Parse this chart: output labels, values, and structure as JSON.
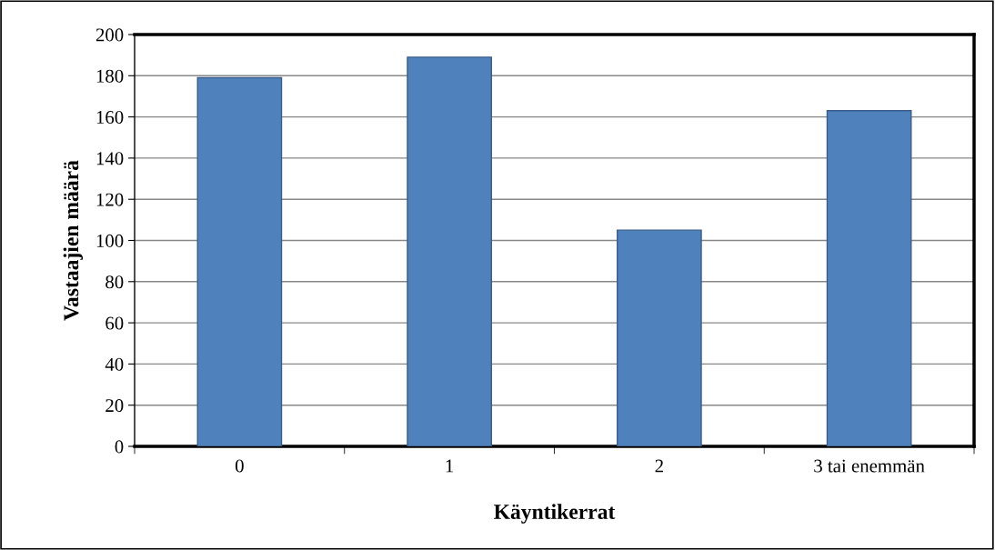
{
  "chart_data": {
    "type": "bar",
    "xlabel": "Käyntikerrat",
    "ylabel": "Vastaajien määrä",
    "categories": [
      "0",
      "1",
      "2",
      "3 tai enemmän"
    ],
    "values": [
      179,
      189,
      105,
      163
    ],
    "color": "#4f81bd",
    "ylim": [
      0,
      200
    ],
    "yticks": [
      0,
      20,
      40,
      60,
      80,
      100,
      120,
      140,
      160,
      180,
      200
    ],
    "grid": "y",
    "legend": false
  }
}
